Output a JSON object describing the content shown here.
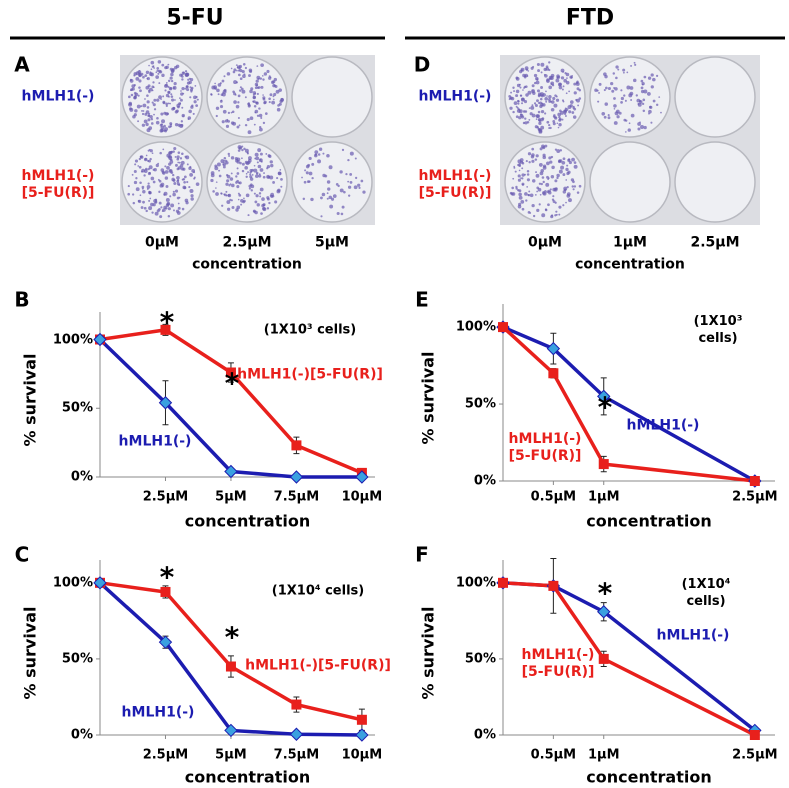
{
  "chart_data": [
    {
      "type": "photo",
      "heading": "5-FU",
      "panel": "A",
      "row_labels": [
        "hMLH1(-)",
        "hMLH1(-)\n[5-FU(R)]"
      ],
      "row_colors": [
        "#1c1cb0",
        "#e8201c"
      ],
      "categories": [
        "0μM",
        "2.5μM",
        "5μM"
      ],
      "xlabel": "concentration"
    },
    {
      "type": "line",
      "panel": "B",
      "ylabel": "% survival",
      "xlabel": "concentration",
      "x": [
        0,
        2.5,
        5,
        7.5,
        10
      ],
      "xlim": [
        0,
        10.5
      ],
      "xticks": [
        {
          "value": 2.5,
          "label": "2.5μM"
        },
        {
          "value": 5,
          "label": "5μM"
        },
        {
          "value": 7.5,
          "label": "7.5μM"
        },
        {
          "value": 10,
          "label": "10μM"
        }
      ],
      "ylim": [
        0,
        120
      ],
      "yticks": [
        {
          "value": 0,
          "label": "0%"
        },
        {
          "value": 50,
          "label": "50%"
        },
        {
          "value": 100,
          "label": "100%"
        }
      ],
      "annotations": [
        "*",
        "*",
        "(1X10³ cells)"
      ],
      "series": [
        {
          "name": "hMLH1(-)[5-FU(R)]",
          "color": "#e8201c",
          "marker": "square",
          "marker_color": "#e8201c",
          "values": [
            100,
            107,
            76,
            23,
            3
          ],
          "errors": [
            0,
            4,
            7,
            6,
            2
          ]
        },
        {
          "name": "hMLH1(-)",
          "color": "#1c1cb0",
          "marker": "diamond",
          "marker_color": "#3aa0e0",
          "values": [
            100,
            54,
            4,
            0,
            0
          ],
          "errors": [
            0,
            16,
            1,
            0,
            0
          ]
        }
      ]
    },
    {
      "type": "line",
      "panel": "C",
      "ylabel": "% survival",
      "xlabel": "concentration",
      "x": [
        0,
        2.5,
        5,
        7.5,
        10
      ],
      "xlim": [
        0,
        10.5
      ],
      "xticks": [
        {
          "value": 2.5,
          "label": "2.5μM"
        },
        {
          "value": 5,
          "label": "5μM"
        },
        {
          "value": 7.5,
          "label": "7.5μM"
        },
        {
          "value": 10,
          "label": "10μM"
        }
      ],
      "ylim": [
        0,
        115
      ],
      "yticks": [
        {
          "value": 0,
          "label": "0%"
        },
        {
          "value": 50,
          "label": "50%"
        },
        {
          "value": 100,
          "label": "100%"
        }
      ],
      "annotations": [
        "*",
        "*",
        "(1X10⁴ cells)"
      ],
      "series": [
        {
          "name": "hMLH1(-)[5-FU(R)]",
          "color": "#e8201c",
          "marker": "square",
          "marker_color": "#e8201c",
          "values": [
            100,
            94,
            45,
            20,
            10
          ],
          "errors": [
            0,
            4,
            7,
            5,
            7
          ]
        },
        {
          "name": "hMLH1(-)",
          "color": "#1c1cb0",
          "marker": "diamond",
          "marker_color": "#3aa0e0",
          "values": [
            100,
            61,
            3,
            0.5,
            0
          ],
          "errors": [
            0,
            4,
            2,
            0,
            0
          ]
        }
      ]
    },
    {
      "type": "photo",
      "heading": "FTD",
      "panel": "D",
      "row_labels": [
        "hMLH1(-)",
        "hMLH1(-)\n[5-FU(R)]"
      ],
      "row_colors": [
        "#1c1cb0",
        "#e8201c"
      ],
      "categories": [
        "0μM",
        "1μM",
        "2.5μM"
      ],
      "xlabel": "concentration"
    },
    {
      "type": "line",
      "panel": "E",
      "ylabel": "% survival",
      "xlabel": "concentration",
      "x": [
        0,
        0.5,
        1,
        2.5
      ],
      "xlim": [
        0,
        2.7
      ],
      "xticks": [
        {
          "value": 0.5,
          "label": "0.5μM"
        },
        {
          "value": 1,
          "label": "1μM"
        },
        {
          "value": 2.5,
          "label": "2.5μM"
        }
      ],
      "ylim": [
        0,
        115
      ],
      "yticks": [
        {
          "value": 0,
          "label": "0%"
        },
        {
          "value": 50,
          "label": "50%"
        },
        {
          "value": 100,
          "label": "100%"
        }
      ],
      "annotations": [
        "*",
        "(1X10³ cells)"
      ],
      "series": [
        {
          "name": "hMLH1(-)",
          "color": "#1c1cb0",
          "marker": "diamond",
          "marker_color": "#3aa0e0",
          "values": [
            100,
            86,
            55,
            0
          ],
          "errors": [
            0,
            10,
            12,
            0
          ]
        },
        {
          "name": "hMLH1(-)\n[5-FU(R)]",
          "color": "#e8201c",
          "marker": "square",
          "marker_color": "#e8201c",
          "values": [
            100,
            70,
            11,
            0
          ],
          "errors": [
            0,
            3,
            5,
            0
          ]
        }
      ]
    },
    {
      "type": "line",
      "panel": "F",
      "ylabel": "% survival",
      "xlabel": "concentration",
      "x": [
        0,
        0.5,
        1,
        2.5
      ],
      "xlim": [
        0,
        2.7
      ],
      "xticks": [
        {
          "value": 0.5,
          "label": "0.5μM"
        },
        {
          "value": 1,
          "label": "1μM"
        },
        {
          "value": 2.5,
          "label": "2.5μM"
        }
      ],
      "ylim": [
        0,
        115
      ],
      "yticks": [
        {
          "value": 0,
          "label": "0%"
        },
        {
          "value": 50,
          "label": "50%"
        },
        {
          "value": 100,
          "label": "100%"
        }
      ],
      "annotations": [
        "*",
        "(1X10⁴ cells)"
      ],
      "series": [
        {
          "name": "hMLH1(-)",
          "color": "#1c1cb0",
          "marker": "diamond",
          "marker_color": "#3aa0e0",
          "values": [
            100,
            98,
            81,
            3
          ],
          "errors": [
            0,
            18,
            6,
            2
          ]
        },
        {
          "name": "hMLH1(-)\n[5-FU(R)]",
          "color": "#e8201c",
          "marker": "square",
          "marker_color": "#e8201c",
          "values": [
            100,
            98,
            50,
            0
          ],
          "errors": [
            0,
            2,
            5,
            0
          ]
        }
      ]
    }
  ]
}
